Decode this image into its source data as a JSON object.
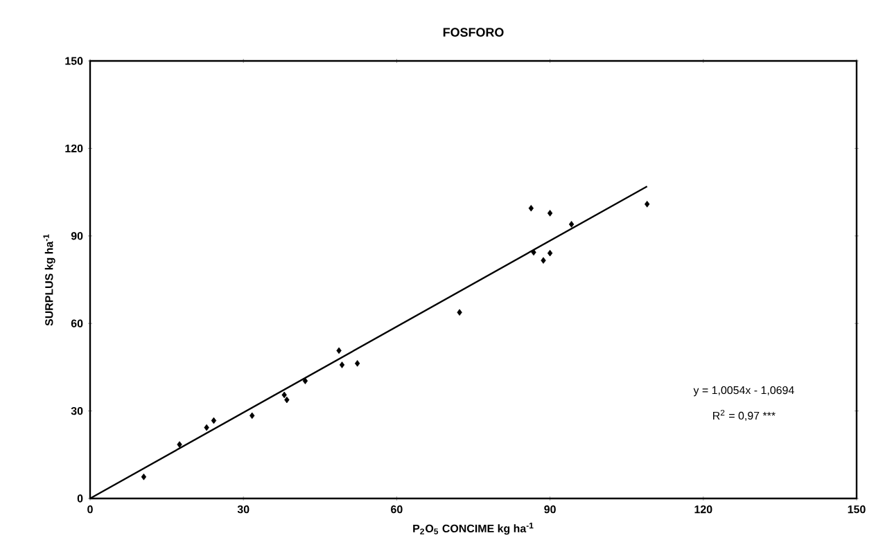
{
  "chart_data": {
    "type": "scatter",
    "title": "FOSFORO",
    "xlabel": "P$_{2}$O$_{5}$ CONCIME kg ha$^{-1}$",
    "ylabel": "SURPLUS kg ha$^{-1}$",
    "series": [
      {
        "color": "#000000",
        "marker": "diamond",
        "x": [
          10.5,
          17.5,
          22.8,
          24.2,
          31.7,
          38.0,
          38.5,
          42.1,
          48.7,
          49.3,
          52.3,
          72.3,
          86.3,
          90.0,
          94.2,
          86.8,
          90.0,
          88.7,
          109.0
        ],
        "values": [
          7.4,
          18.5,
          24.3,
          26.7,
          28.4,
          35.5,
          33.8,
          40.3,
          50.7,
          45.8,
          46.3,
          63.8,
          99.5,
          97.8,
          94.0,
          84.4,
          84.1,
          81.6,
          100.9
        ]
      },
      {
        "type": "line",
        "color": "#000000",
        "marker": "none",
        "x": [
          0,
          109
        ],
        "values": [
          0,
          107
        ]
      }
    ],
    "xlim": [
      0,
      150
    ],
    "ylim": [
      0,
      150
    ],
    "xticks": [
      0,
      30,
      60,
      90,
      120,
      150
    ],
    "yticks": [
      0,
      30,
      60,
      90,
      120,
      150
    ],
    "grid": false,
    "annotations": [
      "y = 1,0054x - 1,0694",
      "R$^{2}$ = 0,97 ***"
    ]
  }
}
